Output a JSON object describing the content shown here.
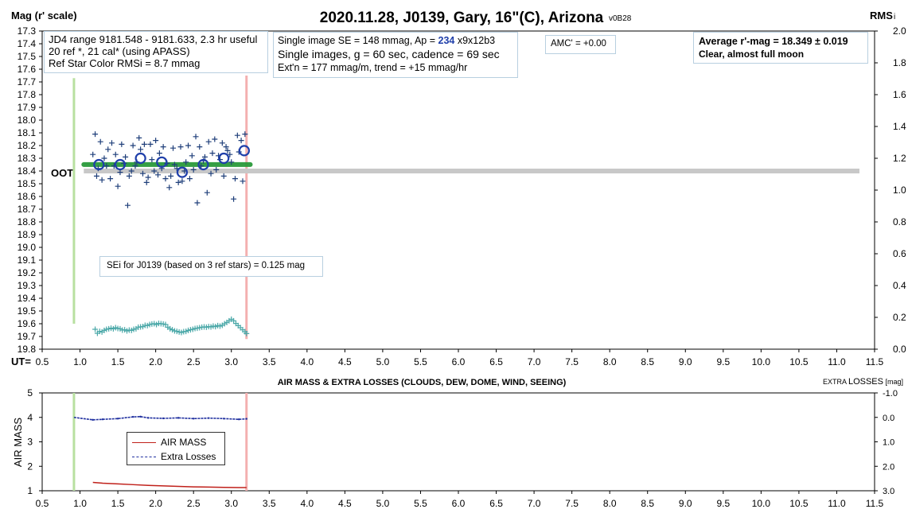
{
  "main_chart": {
    "title": "2020.11.28, J0139, Gary, 16\"(C), Arizona",
    "version": "v0B28",
    "y_left_label": "Mag (r' scale)",
    "y_right_label": "RMS",
    "y_right_label_suffix": "i",
    "x_label": "UT=",
    "oot_label": "OOT",
    "info_left": [
      "JD4 range 9181.548 - 9181.633, 2.3 hr useful",
      "20 ref *, 21 cal* (using APASS)",
      "Ref Star Color RMSi = 8.7 mmag"
    ],
    "info_mid_line1_pre": "Single image SE = 148 mmag, Ap = ",
    "info_mid_line1_ap": "234",
    "info_mid_line1_post": " x9x12b3",
    "info_mid_line2": "Single images, g = 60 sec, cadence = 69 sec",
    "info_mid_line3": "Ext'n = 177 mmag/m, trend = +15 mmag/hr",
    "amc": "AMC' = +0.00",
    "avg_line1": "Average r'-mag =  18.349 ± 0.019",
    "avg_line2": "Clear, almost full  moon",
    "sei_note": "SEi for J0139 (based on 3 ref stars) = 0.125 mag"
  },
  "lower_chart": {
    "title": "AIR MASS & EXTRA LOSSES (CLOUDS, DEW, DOME, WIND, SEEING)",
    "right_title_pre": "EXTRA ",
    "right_title_main": "LOSSES",
    "right_title_unit": " [mag]",
    "y_left_label": "AIR MASS",
    "legend": [
      "AIR MASS",
      "Extra Losses"
    ]
  },
  "chart_data": [
    {
      "type": "scatter",
      "x_ticks": [
        "0.5",
        "1.0",
        "1.5",
        "2.0",
        "2.5",
        "3.0",
        "3.5",
        "4.0",
        "4.5",
        "5.0",
        "5.5",
        "6.0",
        "6.5",
        "7.0",
        "7.5",
        "8.0",
        "8.5",
        "9.0",
        "9.5",
        "10.0",
        "10.5",
        "11.0",
        "11.5"
      ],
      "xlim": [
        0.5,
        11.5
      ],
      "ylim": [
        17.3,
        19.8
      ],
      "y_reversed": true,
      "y_ticks": [
        "17.3",
        "17.4",
        "17.5",
        "17.6",
        "17.7",
        "17.8",
        "17.9",
        "18.0",
        "18.1",
        "18.2",
        "18.3",
        "18.4",
        "18.5",
        "18.6",
        "18.7",
        "18.8",
        "18.9",
        "19.0",
        "19.1",
        "19.2",
        "19.3",
        "19.4",
        "19.5",
        "19.6",
        "19.7",
        "19.8"
      ],
      "y2lim": [
        0.0,
        2.0
      ],
      "y2_ticks": [
        "0.0",
        "0.2",
        "0.4",
        "0.6",
        "0.8",
        "1.0",
        "1.2",
        "1.4",
        "1.6",
        "1.8",
        "2.0"
      ],
      "vertical_markers": [
        {
          "name": "ingress",
          "x": 0.92,
          "color": "#b8e0a0",
          "y_from": 17.67,
          "y_to": 19.6
        },
        {
          "name": "egress",
          "x": 3.2,
          "color": "#f4b0b0",
          "y_from": 17.65,
          "y_to": 19.72
        }
      ],
      "oot_level": 18.4,
      "average_level": 18.349,
      "average_range": [
        1.05,
        3.25
      ],
      "series": [
        {
          "name": "single images",
          "marker": "+",
          "color": "#1f3f7a",
          "x": [
            1.17,
            1.2,
            1.22,
            1.24,
            1.27,
            1.29,
            1.32,
            1.35,
            1.37,
            1.4,
            1.42,
            1.45,
            1.47,
            1.5,
            1.53,
            1.55,
            1.58,
            1.6,
            1.63,
            1.65,
            1.68,
            1.7,
            1.73,
            1.75,
            1.78,
            1.8,
            1.83,
            1.85,
            1.88,
            1.9,
            1.93,
            1.95,
            1.98,
            2.0,
            2.03,
            2.05,
            2.08,
            2.1,
            2.13,
            2.15,
            2.18,
            2.2,
            2.23,
            2.25,
            2.28,
            2.3,
            2.33,
            2.35,
            2.38,
            2.4,
            2.43,
            2.45,
            2.48,
            2.5,
            2.53,
            2.55,
            2.58,
            2.6,
            2.63,
            2.65,
            2.68,
            2.7,
            2.73,
            2.75,
            2.78,
            2.8,
            2.83,
            2.85,
            2.88,
            2.9,
            2.93,
            2.95,
            2.98,
            3.0,
            3.03,
            3.05,
            3.08,
            3.1,
            3.13,
            3.15,
            3.18
          ],
          "y": [
            18.27,
            18.11,
            18.44,
            18.38,
            18.17,
            18.47,
            18.3,
            18.36,
            18.23,
            18.46,
            18.18,
            18.36,
            18.27,
            18.52,
            18.41,
            18.19,
            18.34,
            18.29,
            18.67,
            18.44,
            18.4,
            18.2,
            18.36,
            18.33,
            18.14,
            18.23,
            18.42,
            18.19,
            18.49,
            18.45,
            18.19,
            18.31,
            18.4,
            18.16,
            18.43,
            18.26,
            18.38,
            18.21,
            18.46,
            18.34,
            18.53,
            18.44,
            18.22,
            18.35,
            18.38,
            18.49,
            18.21,
            18.48,
            18.4,
            18.33,
            18.2,
            18.46,
            18.28,
            18.39,
            18.13,
            18.65,
            18.21,
            18.36,
            18.32,
            18.29,
            18.57,
            18.17,
            18.42,
            18.26,
            18.15,
            18.39,
            18.28,
            18.31,
            18.18,
            18.44,
            18.21,
            18.24,
            18.27,
            18.33,
            18.62,
            18.46,
            18.12,
            18.25,
            18.16,
            18.48,
            18.11
          ]
        },
        {
          "name": "binned averages",
          "marker": "circle",
          "color": "#1f3faa",
          "x": [
            1.25,
            1.53,
            1.8,
            2.08,
            2.35,
            2.63,
            2.9,
            3.17
          ],
          "y": [
            18.35,
            18.35,
            18.3,
            18.33,
            18.41,
            18.35,
            18.3,
            18.24
          ]
        },
        {
          "name": "RMS",
          "marker": "+",
          "color": "#4aa8a8",
          "axis": "right",
          "x": [
            1.2,
            1.23,
            1.26,
            1.29,
            1.32,
            1.35,
            1.38,
            1.41,
            1.44,
            1.47,
            1.5,
            1.53,
            1.56,
            1.59,
            1.62,
            1.65,
            1.68,
            1.71,
            1.74,
            1.77,
            1.8,
            1.83,
            1.86,
            1.89,
            1.92,
            1.95,
            1.98,
            2.01,
            2.04,
            2.07,
            2.1,
            2.13,
            2.16,
            2.19,
            2.22,
            2.25,
            2.28,
            2.31,
            2.34,
            2.37,
            2.4,
            2.43,
            2.46,
            2.49,
            2.52,
            2.55,
            2.58,
            2.61,
            2.64,
            2.67,
            2.7,
            2.73,
            2.76,
            2.79,
            2.82,
            2.85,
            2.88,
            2.91,
            2.94,
            2.97,
            3.0,
            3.03,
            3.06,
            3.09,
            3.12,
            3.15,
            3.18,
            3.2
          ],
          "y": [
            0.125,
            0.1,
            0.112,
            0.108,
            0.118,
            0.125,
            0.128,
            0.132,
            0.128,
            0.135,
            0.13,
            0.128,
            0.12,
            0.122,
            0.115,
            0.12,
            0.118,
            0.125,
            0.128,
            0.138,
            0.14,
            0.142,
            0.15,
            0.148,
            0.155,
            0.158,
            0.16,
            0.155,
            0.162,
            0.16,
            0.158,
            0.155,
            0.138,
            0.128,
            0.122,
            0.115,
            0.112,
            0.108,
            0.105,
            0.11,
            0.112,
            0.118,
            0.122,
            0.125,
            0.13,
            0.132,
            0.135,
            0.138,
            0.14,
            0.138,
            0.142,
            0.14,
            0.145,
            0.142,
            0.148,
            0.145,
            0.15,
            0.16,
            0.168,
            0.178,
            0.188,
            0.178,
            0.162,
            0.148,
            0.135,
            0.122,
            0.11,
            0.098
          ]
        }
      ]
    },
    {
      "type": "line",
      "title": "AIR MASS & EXTRA LOSSES (CLOUDS, DEW, DOME, WIND, SEEING)",
      "x_ticks": [
        "0.5",
        "1.0",
        "1.5",
        "2.0",
        "2.5",
        "3.0",
        "3.5",
        "4.0",
        "4.5",
        "5.0",
        "5.5",
        "6.0",
        "6.5",
        "7.0",
        "7.5",
        "8.0",
        "8.5",
        "9.0",
        "9.5",
        "10.0",
        "10.5",
        "11.0",
        "11.5"
      ],
      "xlim": [
        0.5,
        11.5
      ],
      "ylim": [
        1,
        5
      ],
      "y_ticks": [
        "1",
        "2",
        "3",
        "4",
        "5"
      ],
      "y2lim": [
        3.0,
        -1.0
      ],
      "y2_ticks": [
        "-1.0",
        "0.0",
        "1.0",
        "2.0",
        "3.0"
      ],
      "vertical_markers": [
        {
          "name": "ingress",
          "x": 0.92,
          "color": "#b8e0a0"
        },
        {
          "name": "egress",
          "x": 3.2,
          "color": "#f4b0b0"
        }
      ],
      "series": [
        {
          "name": "AIR MASS",
          "color": "#c0201a",
          "axis": "left",
          "x": [
            1.17,
            1.3,
            1.5,
            1.7,
            1.9,
            2.1,
            2.3,
            2.5,
            2.7,
            2.9,
            3.1,
            3.2
          ],
          "y": [
            1.34,
            1.31,
            1.28,
            1.25,
            1.22,
            1.2,
            1.18,
            1.16,
            1.15,
            1.14,
            1.13,
            1.13
          ]
        },
        {
          "name": "Extra Losses",
          "color": "#1f2f9f",
          "axis": "right",
          "x": [
            0.92,
            1.17,
            1.3,
            1.5,
            1.7,
            1.8,
            1.9,
            2.1,
            2.3,
            2.5,
            2.7,
            2.9,
            3.1,
            3.2
          ],
          "y": [
            0.0,
            0.1,
            0.08,
            0.05,
            -0.02,
            -0.03,
            0.02,
            0.04,
            0.02,
            0.05,
            0.03,
            0.05,
            0.08,
            0.06
          ]
        }
      ]
    }
  ]
}
